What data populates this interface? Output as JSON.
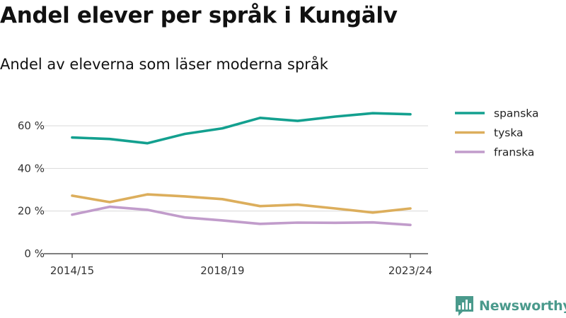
{
  "title": "Andel elever per språk i Kungälv",
  "subtitle": "Andel av eleverna som läser moderna språk",
  "brand": {
    "name": "Newsworthy",
    "color": "#4a9a8c",
    "icon": "newsworthy-logo-icon"
  },
  "chart_data": {
    "type": "line",
    "x": [
      "2014/15",
      "2015/16",
      "2016/17",
      "2017/18",
      "2018/19",
      "2019/20",
      "2020/21",
      "2021/22",
      "2022/23",
      "2023/24"
    ],
    "x_tick_labels": [
      "2014/15",
      "2018/19",
      "2023/24"
    ],
    "y_tick_labels": [
      "0 %",
      "20 %",
      "40 %",
      "60 %"
    ],
    "y_ticks": [
      0,
      20,
      40,
      60
    ],
    "ylim": [
      0,
      72
    ],
    "grid": true,
    "legend_position": "right",
    "series": [
      {
        "name": "spanska",
        "color": "#13a08f",
        "values": [
          54.5,
          53.8,
          51.8,
          56.2,
          58.8,
          63.7,
          62.3,
          64.3,
          65.9,
          65.4
        ]
      },
      {
        "name": "tyska",
        "color": "#dcae5c",
        "values": [
          27.2,
          24.2,
          27.8,
          26.9,
          25.6,
          22.3,
          23.0,
          21.2,
          19.3,
          21.2
        ]
      },
      {
        "name": "franska",
        "color": "#c19ccb",
        "values": [
          18.3,
          22.0,
          20.6,
          17.0,
          15.6,
          14.0,
          14.6,
          14.5,
          14.7,
          13.5
        ]
      }
    ]
  }
}
